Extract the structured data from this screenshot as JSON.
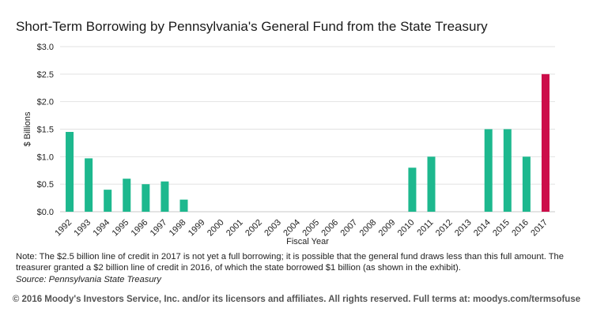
{
  "header": {
    "title": "Short-Term Borrowing by Pennsylvania's General Fund from the State Treasury"
  },
  "chart_data": {
    "type": "bar",
    "title": "Short-Term Borrowing by Pennsylvania's General Fund from the State Treasury",
    "xlabel": "Fiscal Year",
    "ylabel": "$ Billions",
    "ylim": [
      0,
      3.0
    ],
    "yticks": [
      0.0,
      0.5,
      1.0,
      1.5,
      2.0,
      2.5,
      3.0
    ],
    "ytick_labels": [
      "$0.0",
      "$0.5",
      "$1.0",
      "$1.5",
      "$2.0",
      "$2.5",
      "$3.0"
    ],
    "grid": true,
    "categories": [
      "1992",
      "1993",
      "1994",
      "1995",
      "1996",
      "1997",
      "1998",
      "1999",
      "2000",
      "2001",
      "2002",
      "2003",
      "2004",
      "2005",
      "2006",
      "2007",
      "2008",
      "2009",
      "2010",
      "2011",
      "2012",
      "2013",
      "2014",
      "2015",
      "2016",
      "2017"
    ],
    "values": [
      1.45,
      0.97,
      0.4,
      0.6,
      0.5,
      0.55,
      0.22,
      0,
      0,
      0,
      0,
      0,
      0,
      0,
      0,
      0,
      0,
      0,
      0.8,
      1.0,
      0,
      0,
      1.5,
      1.5,
      1.0,
      2.5
    ],
    "colors": {
      "default": "#1db88e",
      "highlight": "#cc0d4a",
      "grid": "#e2e2e2",
      "axis": "#c8c8c8"
    },
    "highlight_categories": [
      "2017"
    ]
  },
  "footer": {
    "note": "Note: The $2.5 billion line of credit in 2017 is not yet a full borrowing; it is possible that the general fund draws less than this full amount. The treasurer granted a $2 billion line of credit in 2016, of which the state borrowed $1 billion (as shown in the exhibit).",
    "source": "Source: Pennsylvania State Treasury",
    "copyright": "© 2016 Moody's Investors Service, Inc. and/or its licensors and affiliates. All rights reserved. Full terms at: moodys.com/termsofuse"
  }
}
